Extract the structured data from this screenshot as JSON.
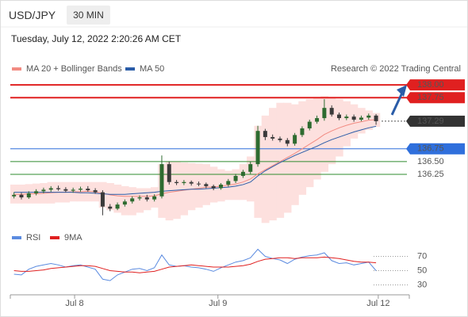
{
  "header": {
    "symbol": "USD/JPY",
    "interval": "30 MIN",
    "timestamp": "Tuesday, July 12, 2022 2:20:26 AM CET"
  },
  "chart_data": [
    {
      "type": "candlestick",
      "source": "Research © 2022 Trading Central",
      "xlim": [
        -0.5,
        53.5
      ],
      "ylim": [
        135.15,
        138.25
      ],
      "up_color": "#2e6b30",
      "down_color": "#3a3a3a",
      "open": [
        135.82,
        135.85,
        135.8,
        135.88,
        135.92,
        135.95,
        135.98,
        135.96,
        135.93,
        135.95,
        135.97,
        135.94,
        135.9,
        135.62,
        135.58,
        135.66,
        135.72,
        135.78,
        135.8,
        135.76,
        135.82,
        136.45,
        136.1,
        136.08,
        136.1,
        136.07,
        136.06,
        136.02,
        135.98,
        136.05,
        136.12,
        136.22,
        136.3,
        136.45,
        137.1,
        136.98,
        136.95,
        136.92,
        136.85,
        137.02,
        137.15,
        137.28,
        137.35,
        137.55,
        137.42,
        137.35,
        137.38,
        137.32,
        137.36,
        137.4
      ],
      "high": [
        135.9,
        135.89,
        135.92,
        135.96,
        135.99,
        136.02,
        136.03,
        136.0,
        135.99,
        136.01,
        136.02,
        135.98,
        135.94,
        135.67,
        135.7,
        135.76,
        135.82,
        135.84,
        135.85,
        135.86,
        136.62,
        136.5,
        136.14,
        136.14,
        136.13,
        136.11,
        136.09,
        136.05,
        136.08,
        136.16,
        136.26,
        136.34,
        136.5,
        137.2,
        137.14,
        137.03,
        136.99,
        136.96,
        137.06,
        137.19,
        137.32,
        137.4,
        137.72,
        137.6,
        137.46,
        137.42,
        137.42,
        137.4,
        137.44,
        137.43
      ],
      "low": [
        135.78,
        135.76,
        135.77,
        135.84,
        135.88,
        135.91,
        135.93,
        135.9,
        135.89,
        135.91,
        135.91,
        135.87,
        135.45,
        135.53,
        135.55,
        135.62,
        135.68,
        135.74,
        135.72,
        135.72,
        135.78,
        136.05,
        136.04,
        136.04,
        136.03,
        136.02,
        135.98,
        135.94,
        135.95,
        136.01,
        136.08,
        136.18,
        136.26,
        136.4,
        136.92,
        136.91,
        136.88,
        136.8,
        136.81,
        136.98,
        137.11,
        137.24,
        137.3,
        137.38,
        137.31,
        137.31,
        137.28,
        137.29,
        137.32,
        137.22
      ],
      "close": [
        135.85,
        135.8,
        135.88,
        135.92,
        135.95,
        135.98,
        135.96,
        135.93,
        135.95,
        135.97,
        135.94,
        135.9,
        135.62,
        135.58,
        135.66,
        135.72,
        135.78,
        135.8,
        135.76,
        135.82,
        136.45,
        136.1,
        136.08,
        136.1,
        136.07,
        136.06,
        136.02,
        135.98,
        136.05,
        136.12,
        136.22,
        136.3,
        136.45,
        137.1,
        136.98,
        136.95,
        136.92,
        136.85,
        137.02,
        137.15,
        137.28,
        137.35,
        137.55,
        137.42,
        137.35,
        137.38,
        137.32,
        137.36,
        137.4,
        137.29
      ],
      "overlays": [
        {
          "name": "MA 20 + Bollinger Bands",
          "color": "#f28b82",
          "band_color": "#fde0de",
          "values": [
            135.86,
            135.86,
            135.87,
            135.87,
            135.88,
            135.89,
            135.9,
            135.9,
            135.91,
            135.91,
            135.92,
            135.91,
            135.88,
            135.85,
            135.83,
            135.82,
            135.82,
            135.82,
            135.82,
            135.83,
            135.87,
            135.9,
            135.92,
            135.94,
            135.96,
            135.98,
            136.0,
            136.0,
            136.02,
            136.04,
            136.06,
            136.1,
            136.16,
            136.26,
            136.34,
            136.42,
            136.5,
            136.58,
            136.66,
            136.75,
            136.84,
            136.93,
            137.03,
            137.1,
            137.16,
            137.21,
            137.25,
            137.28,
            137.31,
            137.32
          ],
          "upper": [
            136.05,
            136.05,
            136.06,
            136.07,
            136.08,
            136.1,
            136.1,
            136.1,
            136.1,
            136.1,
            136.1,
            136.1,
            136.1,
            136.08,
            136.05,
            136.02,
            136.0,
            135.98,
            135.98,
            136.0,
            136.45,
            136.5,
            136.5,
            136.48,
            136.47,
            136.46,
            136.45,
            136.4,
            136.35,
            136.32,
            136.35,
            136.45,
            136.6,
            137.2,
            137.4,
            137.55,
            137.65,
            137.65,
            137.62,
            137.68,
            137.72,
            137.75,
            137.78,
            137.75,
            137.72,
            137.68,
            137.62,
            137.55,
            137.5,
            137.45
          ],
          "lower": [
            135.68,
            135.68,
            135.68,
            135.68,
            135.68,
            135.68,
            135.7,
            135.7,
            135.72,
            135.72,
            135.72,
            135.72,
            135.6,
            135.55,
            135.5,
            135.45,
            135.45,
            135.5,
            135.55,
            135.6,
            135.4,
            135.35,
            135.38,
            135.45,
            135.55,
            135.6,
            135.65,
            135.7,
            135.72,
            135.75,
            135.75,
            135.75,
            135.72,
            135.4,
            135.3,
            135.35,
            135.4,
            135.5,
            135.65,
            135.85,
            136.0,
            136.15,
            136.3,
            136.45,
            136.6,
            136.8,
            136.95,
            137.05,
            137.12,
            137.18
          ]
        },
        {
          "name": "MA 50",
          "color": "#2a5ca8",
          "values": [
            135.9,
            135.9,
            135.9,
            135.9,
            135.9,
            135.9,
            135.9,
            135.9,
            135.9,
            135.89,
            135.89,
            135.88,
            135.87,
            135.86,
            135.86,
            135.86,
            135.87,
            135.88,
            135.89,
            135.9,
            135.92,
            135.93,
            135.94,
            135.95,
            135.96,
            135.96,
            135.97,
            135.98,
            135.99,
            136.0,
            136.02,
            136.05,
            136.1,
            136.22,
            136.32,
            136.4,
            136.48,
            136.55,
            136.62,
            136.68,
            136.74,
            136.8,
            136.87,
            136.93,
            136.98,
            137.03,
            137.08,
            137.12,
            137.16,
            137.19
          ]
        }
      ],
      "levels": [
        {
          "value": 138,
          "label": "138.00",
          "color": "#e02020",
          "boxed": true,
          "dotted": false
        },
        {
          "value": 137.75,
          "label": "137.75",
          "color": "#e02020",
          "boxed": true,
          "dotted": false
        },
        {
          "value": 137.29,
          "label": "137.29",
          "color": "#333333",
          "boxed": true,
          "dotted": true
        },
        {
          "value": 136.75,
          "label": "136.75",
          "color": "#2f6fdc",
          "boxed": true,
          "dotted": false
        },
        {
          "value": 136.5,
          "label": "136.50",
          "color": "#2e8b2e",
          "boxed": false,
          "dotted": false
        },
        {
          "value": 136.25,
          "label": "136.25",
          "color": "#2e8b2e",
          "boxed": false,
          "dotted": false
        }
      ]
    },
    {
      "type": "line",
      "xlim": [
        -0.5,
        53.5
      ],
      "ylim": [
        15,
        85
      ],
      "yticks": [
        70,
        50,
        30
      ],
      "xticks": [
        {
          "value": 8.2,
          "label": "Jul 8"
        },
        {
          "value": 27.6,
          "label": "Jul 9"
        },
        {
          "value": 49.3,
          "label": "Jul 12"
        }
      ],
      "series": [
        {
          "name": "RSI",
          "color": "#5b8be0",
          "values": [
            45,
            44,
            52,
            56,
            58,
            60,
            58,
            55,
            57,
            58,
            55,
            52,
            38,
            36,
            44,
            48,
            52,
            53,
            50,
            54,
            72,
            58,
            56,
            57,
            55,
            54,
            52,
            49,
            54,
            58,
            62,
            64,
            68,
            80,
            70,
            67,
            65,
            60,
            66,
            69,
            71,
            72,
            75,
            64,
            60,
            61,
            58,
            60,
            62,
            50
          ]
        },
        {
          "name": "9MA",
          "color": "#e02020",
          "values": [
            50,
            49,
            49,
            50,
            51,
            53,
            54,
            55,
            56,
            57,
            57,
            56,
            53,
            50,
            49,
            48,
            48,
            47,
            48,
            49,
            52,
            55,
            56,
            57,
            58,
            57,
            56,
            55,
            55,
            55,
            56,
            57,
            59,
            63,
            66,
            67,
            68,
            68,
            67,
            68,
            68,
            68,
            69,
            68,
            67,
            65,
            63,
            62,
            62,
            61
          ]
        }
      ]
    }
  ]
}
